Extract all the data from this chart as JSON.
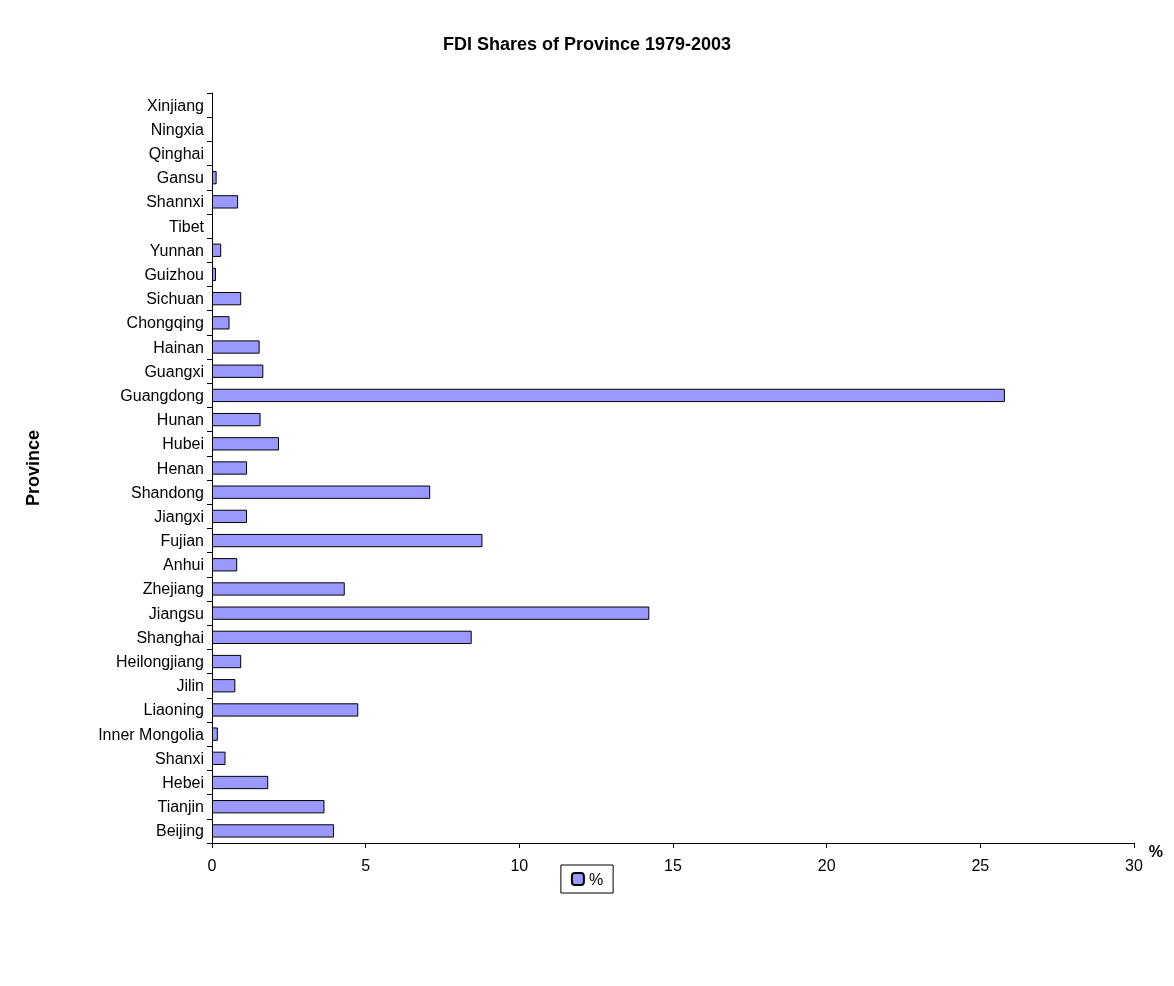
{
  "chart_data": {
    "type": "bar",
    "orientation": "horizontal",
    "title": "FDI Shares of Province 1979-2003",
    "xlabel": "%",
    "ylabel": "Province",
    "categories": [
      "Xinjiang",
      "Ningxia",
      "Qinghai",
      "Gansu",
      "Shannxi",
      "Tibet",
      "Yunnan",
      "Guizhou",
      "Sichuan",
      "Chongqing",
      "Hainan",
      "Guangxi",
      "Guangdong",
      "Hunan",
      "Hubei",
      "Henan",
      "Shandong",
      "Jiangxi",
      "Fujian",
      "Anhui",
      "Zhejiang",
      "Jiangsu",
      "Shanghai",
      "Heilongjiang",
      "Jilin",
      "Liaoning",
      "Inner Mongolia",
      "Shanxi",
      "Hebei",
      "Tianjin",
      "Beijing"
    ],
    "series": [
      {
        "name": "%",
        "color": "#9999ff",
        "values": [
          0,
          0,
          0,
          0.15,
          0.85,
          0,
          0.3,
          0.13,
          0.95,
          0.57,
          1.55,
          1.67,
          25.8,
          1.58,
          2.18,
          1.14,
          7.1,
          1.14,
          8.8,
          0.82,
          4.32,
          14.23,
          8.45,
          0.95,
          0.76,
          4.76,
          0.19,
          0.44,
          1.83,
          3.66,
          3.97
        ]
      }
    ],
    "xlim": [
      0,
      30
    ],
    "xticks": [
      0,
      5,
      10,
      15,
      20,
      25,
      30
    ],
    "grid": false,
    "legend": "bottom"
  }
}
